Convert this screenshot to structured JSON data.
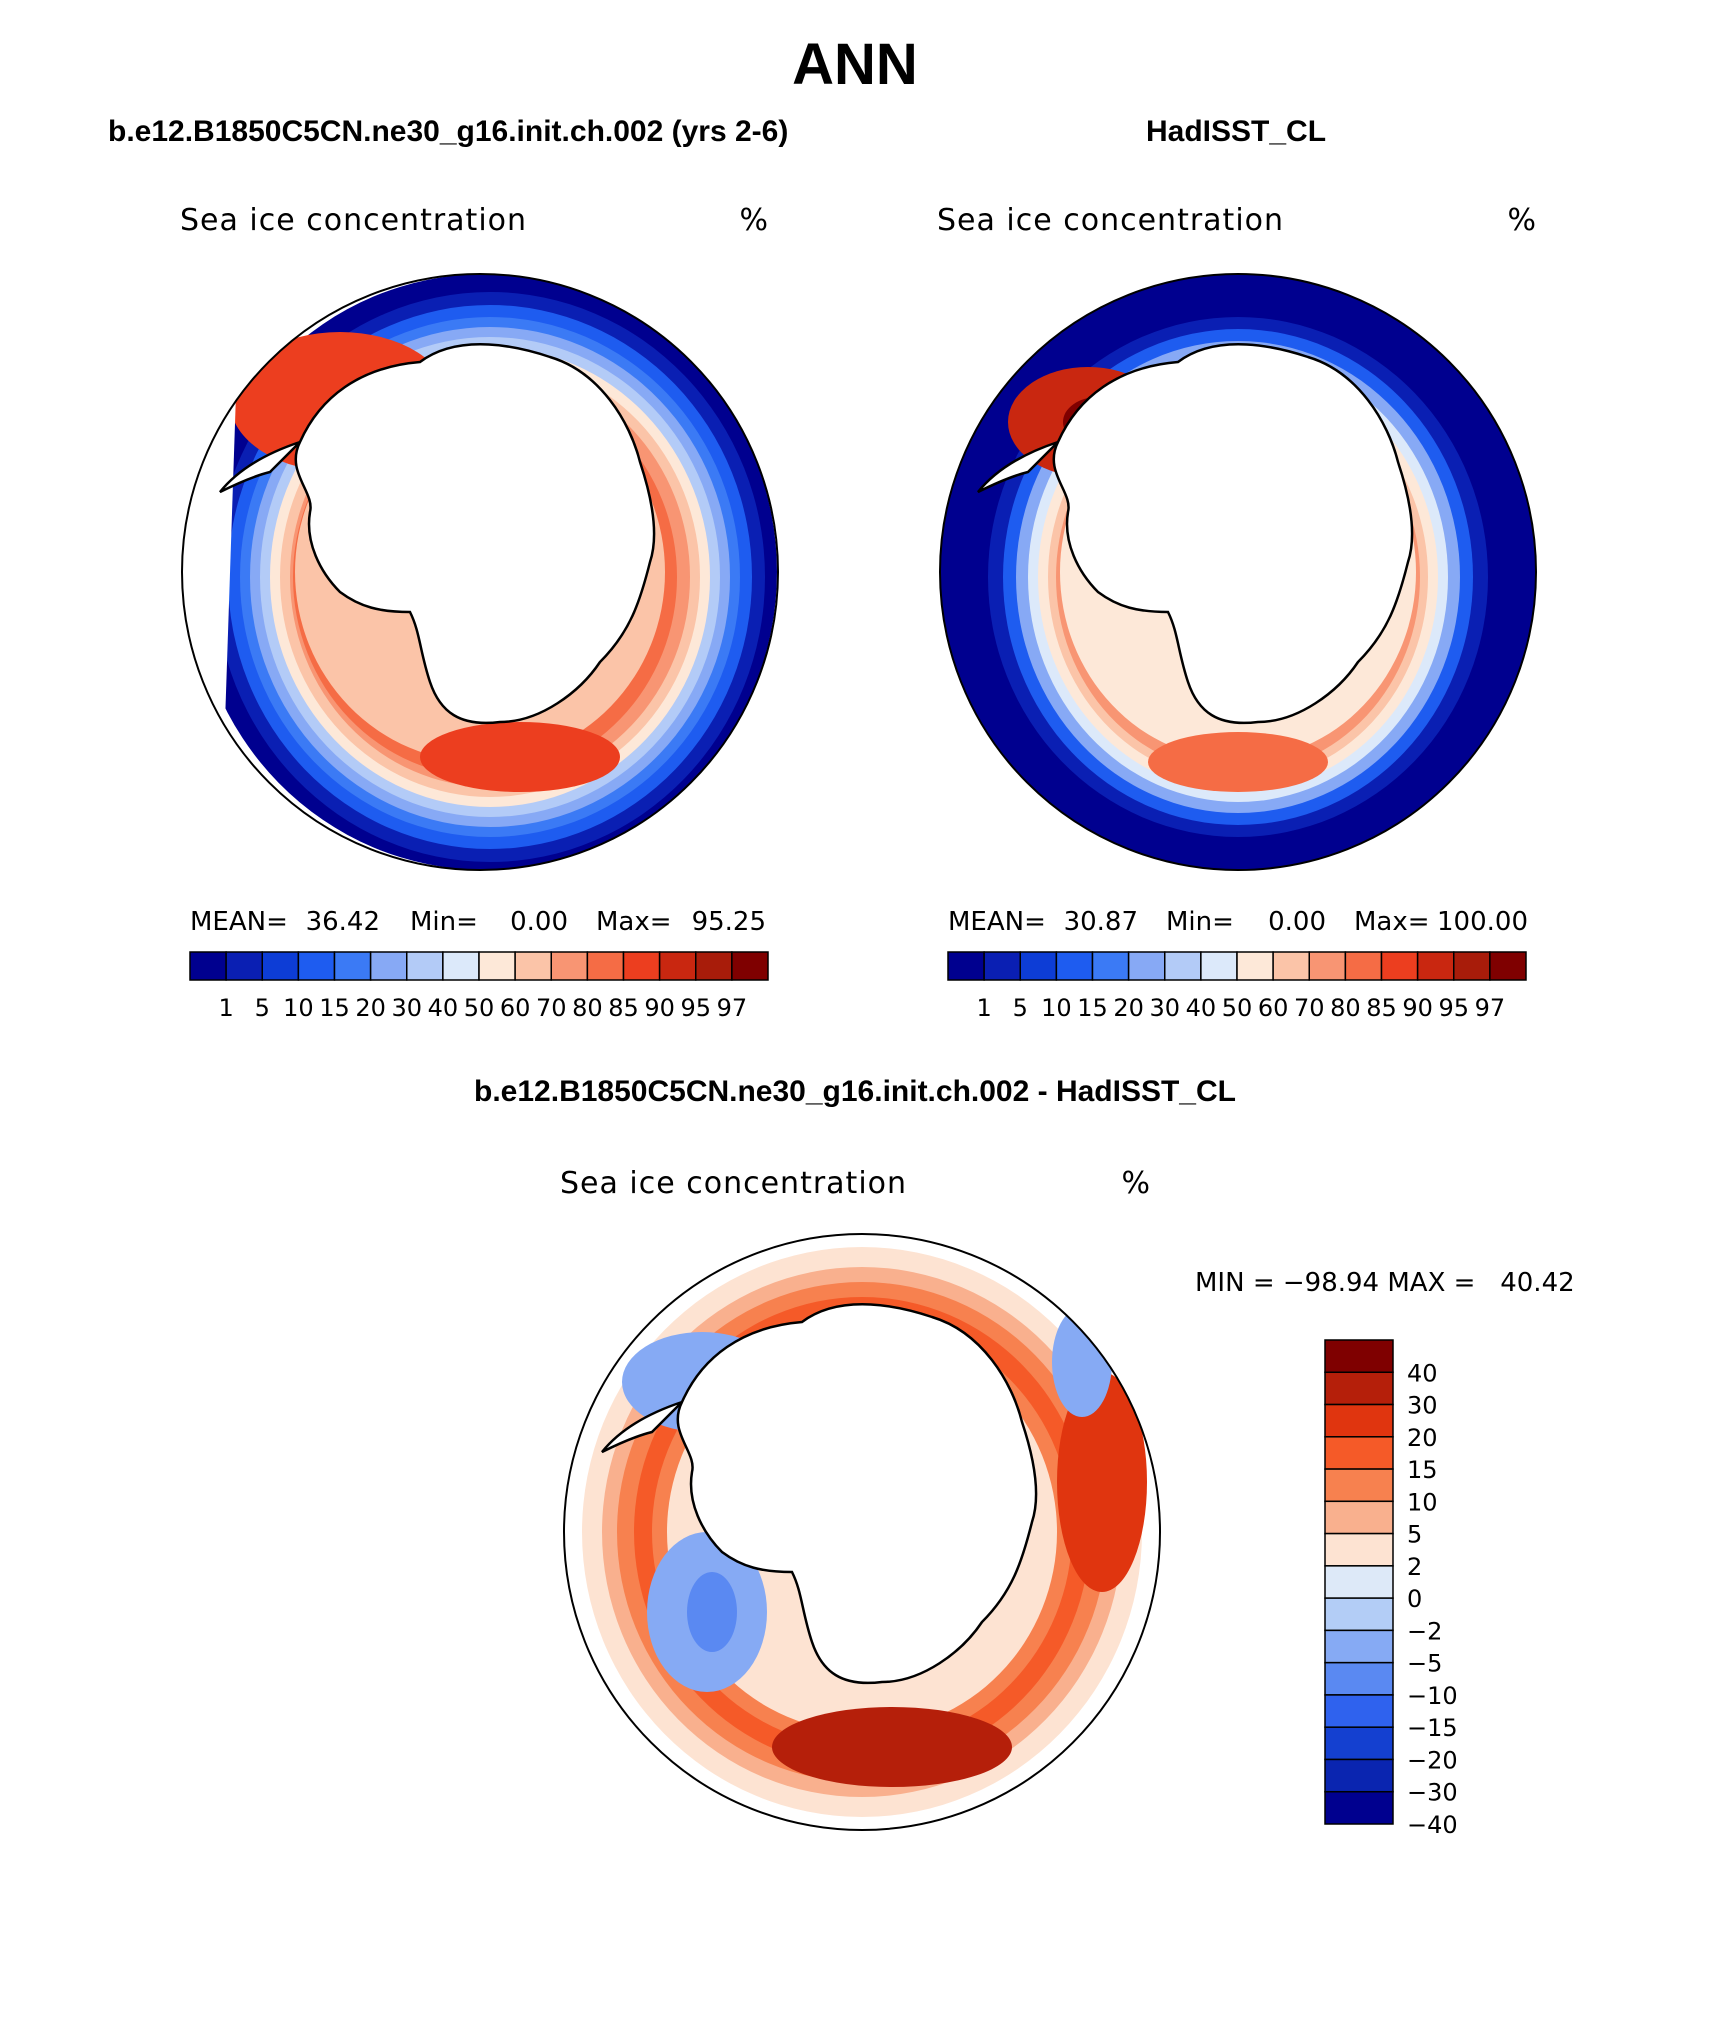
{
  "main_title": "ANN",
  "panels": {
    "model": {
      "title": "b.e12.B1850C5CN.ne30_g16.init.ch.002 (yrs 2-6)",
      "left_label": "Sea ice concentration",
      "right_label": "%",
      "stats": {
        "mean_label": "MEAN=",
        "mean": "36.42",
        "min_label": "Min=",
        "min": "0.00",
        "max_label": "Max=",
        "max": "95.25"
      }
    },
    "obs": {
      "title": "HadISST_CL",
      "left_label": "Sea ice concentration",
      "right_label": "%",
      "stats": {
        "mean_label": "MEAN=",
        "mean": "30.87",
        "min_label": "Min=",
        "min": "0.00",
        "max_label": "Max=",
        "max": "100.00"
      }
    },
    "diff": {
      "title": "b.e12.B1850C5CN.ne30_g16.init.ch.002 - HadISST_CL",
      "left_label": "Sea ice concentration",
      "right_label": "%",
      "minmax": "MIN = −98.94 MAX =   40.42"
    }
  },
  "chart_data": [
    {
      "type": "heatmap",
      "name": "model",
      "projection": "south-polar-stereographic",
      "colorbar_levels": [
        "1",
        "5",
        "10",
        "15",
        "20",
        "30",
        "40",
        "50",
        "60",
        "70",
        "80",
        "85",
        "90",
        "95",
        "97"
      ],
      "colorbar_colors": [
        "#00008f",
        "#0a1fb3",
        "#0d3dd6",
        "#1e5cf0",
        "#3b7af5",
        "#87a9f5",
        "#b3cbf7",
        "#dce9fa",
        "#fde8d8",
        "#fbc4a8",
        "#f89573",
        "#f56c45",
        "#ec3e1f",
        "#c92710",
        "#a81c0a",
        "#7f0000"
      ],
      "mean": 36.42,
      "min": 0.0,
      "max": 95.25
    },
    {
      "type": "heatmap",
      "name": "obs",
      "projection": "south-polar-stereographic",
      "colorbar_levels": [
        "1",
        "5",
        "10",
        "15",
        "20",
        "30",
        "40",
        "50",
        "60",
        "70",
        "80",
        "85",
        "90",
        "95",
        "97"
      ],
      "colorbar_colors": [
        "#00008f",
        "#0a1fb3",
        "#0d3dd6",
        "#1e5cf0",
        "#3b7af5",
        "#87a9f5",
        "#b3cbf7",
        "#dce9fa",
        "#fde8d8",
        "#fbc4a8",
        "#f89573",
        "#f56c45",
        "#ec3e1f",
        "#c92710",
        "#a81c0a",
        "#7f0000"
      ],
      "mean": 30.87,
      "min": 0.0,
      "max": 100.0
    },
    {
      "type": "heatmap",
      "name": "difference",
      "projection": "south-polar-stereographic",
      "colorbar_levels": [
        "40",
        "30",
        "20",
        "15",
        "10",
        "5",
        "2",
        "0",
        "−2",
        "−5",
        "−10",
        "−15",
        "−20",
        "−30",
        "−40"
      ],
      "colorbar_colors": [
        "#7f0000",
        "#b51f0a",
        "#e0350f",
        "#f55a28",
        "#f7814f",
        "#f9b08e",
        "#fde3d2",
        "#dde9f8",
        "#b3cdf6",
        "#86aaf4",
        "#5a89f2",
        "#2f62ee",
        "#1440d0",
        "#0a25b0",
        "#00008f"
      ],
      "min": -98.94,
      "max": 40.42
    }
  ]
}
